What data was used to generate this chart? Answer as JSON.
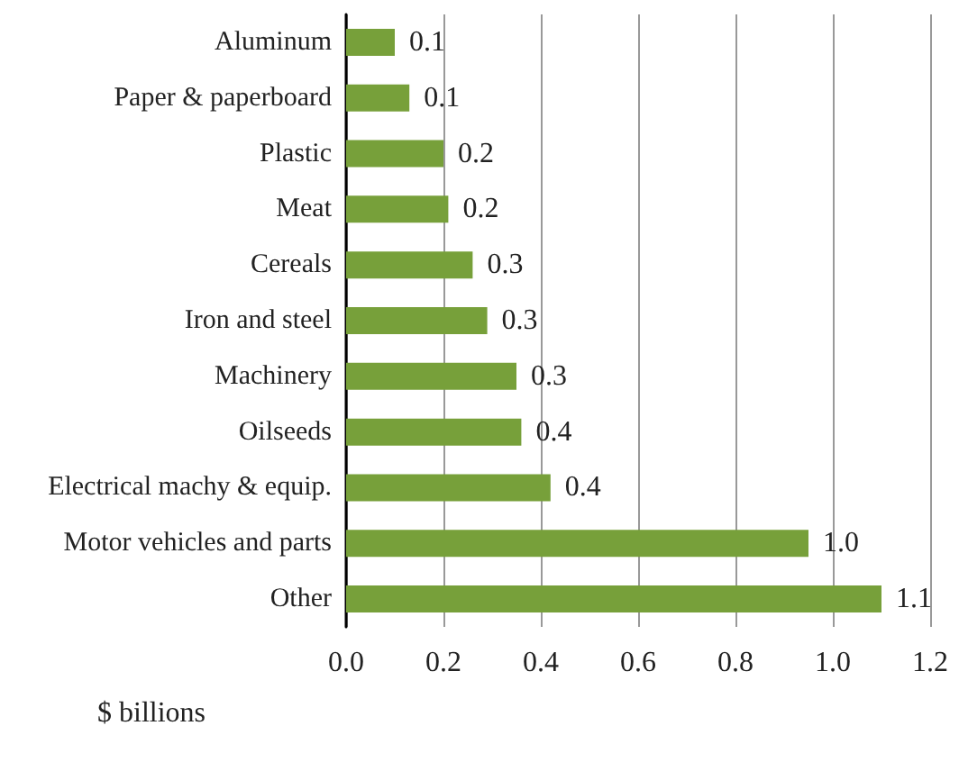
{
  "chart_data": {
    "type": "bar",
    "orientation": "horizontal",
    "xlabel": "$ billions",
    "categories": [
      "Aluminum",
      "Paper & paperboard",
      "Plastic",
      "Meat",
      "Cereals",
      "Iron and steel",
      "Machinery",
      "Oilseeds",
      "Electrical machy & equip.",
      "Motor vehicles and parts",
      "Other"
    ],
    "values": [
      0.1,
      0.13,
      0.2,
      0.21,
      0.26,
      0.29,
      0.35,
      0.36,
      0.42,
      0.95,
      1.1
    ],
    "value_labels": [
      "0.1",
      "0.1",
      "0.2",
      "0.2",
      "0.3",
      "0.3",
      "0.3",
      "0.4",
      "0.4",
      "1.0",
      "1.1"
    ],
    "color": "#77a03a",
    "xlim": [
      0,
      1.2
    ],
    "xticks": [
      {
        "value": 0,
        "label": "0.0"
      },
      {
        "value": 0.2,
        "label": "0.2"
      },
      {
        "value": 0.4,
        "label": "0.4"
      },
      {
        "value": 0.6,
        "label": "0.6"
      },
      {
        "value": 0.8,
        "label": "0.8"
      },
      {
        "value": 1.0,
        "label": "1.0"
      },
      {
        "value": 1.2,
        "label": "1.2"
      }
    ],
    "grid": "x"
  }
}
